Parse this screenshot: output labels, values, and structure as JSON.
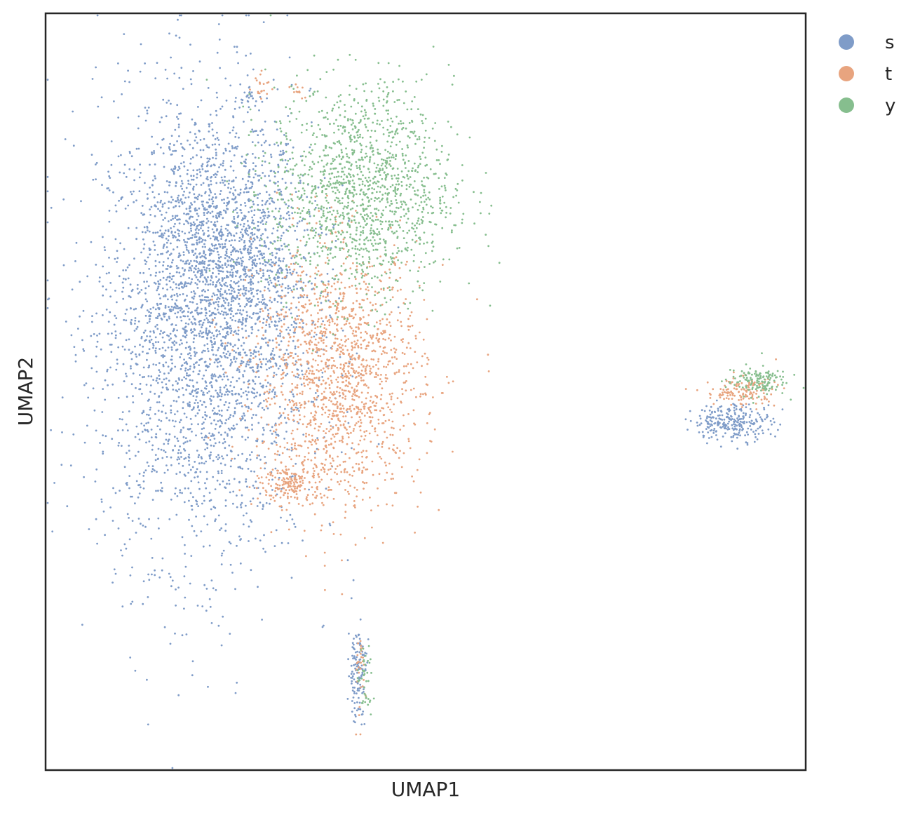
{
  "chart_data": {
    "type": "scatter",
    "title": "",
    "xlabel": "UMAP1",
    "ylabel": "UMAP2",
    "xlim": [
      0,
      100
    ],
    "ylim": [
      0,
      100
    ],
    "xticks": [],
    "yticks": [],
    "grid": false,
    "legend_position": "outside-top-right",
    "series": [
      {
        "name": "s",
        "color": "#7f9cc8",
        "clusters": [
          {
            "center": [
              20.7,
              58.6
            ],
            "spread": [
              7.0,
              15.5
            ],
            "count": 2800
          },
          {
            "center": [
              25.0,
              68.0
            ],
            "spread": [
              5.0,
              7.5
            ],
            "count": 900
          },
          {
            "center": [
              90.5,
              46.0
            ],
            "spread": [
              2.6,
              1.2
            ],
            "count": 260
          },
          {
            "center": [
              41.0,
              13.0
            ],
            "spread": [
              0.6,
              3.2
            ],
            "count": 130
          },
          {
            "center": [
              26.5,
              89.0
            ],
            "spread": [
              0.6,
              0.6
            ],
            "count": 20
          }
        ]
      },
      {
        "name": "t",
        "color": "#e8a47f",
        "clusters": [
          {
            "center": [
              38.6,
              52.0
            ],
            "spread": [
              5.5,
              8.5
            ],
            "count": 1500
          },
          {
            "center": [
              32.5,
              38.0
            ],
            "spread": [
              2.0,
              1.5
            ],
            "count": 180
          },
          {
            "center": [
              91.5,
              50.0
            ],
            "spread": [
              2.4,
              1.0
            ],
            "count": 130
          },
          {
            "center": [
              28.5,
              90.5
            ],
            "spread": [
              0.6,
              0.8
            ],
            "count": 20
          },
          {
            "center": [
              33.0,
              90.0
            ],
            "spread": [
              0.5,
              0.5
            ],
            "count": 12
          },
          {
            "center": [
              41.5,
              13.0
            ],
            "spread": [
              0.5,
              3.0
            ],
            "count": 30
          }
        ]
      },
      {
        "name": "y",
        "color": "#86be8e",
        "clusters": [
          {
            "center": [
              41.5,
              76.5
            ],
            "spread": [
              6.0,
              7.0
            ],
            "count": 1400
          },
          {
            "center": [
              93.5,
              51.5
            ],
            "spread": [
              2.0,
              1.0
            ],
            "count": 140
          },
          {
            "center": [
              42.0,
              11.5
            ],
            "spread": [
              0.5,
              2.5
            ],
            "count": 40
          }
        ]
      }
    ]
  }
}
